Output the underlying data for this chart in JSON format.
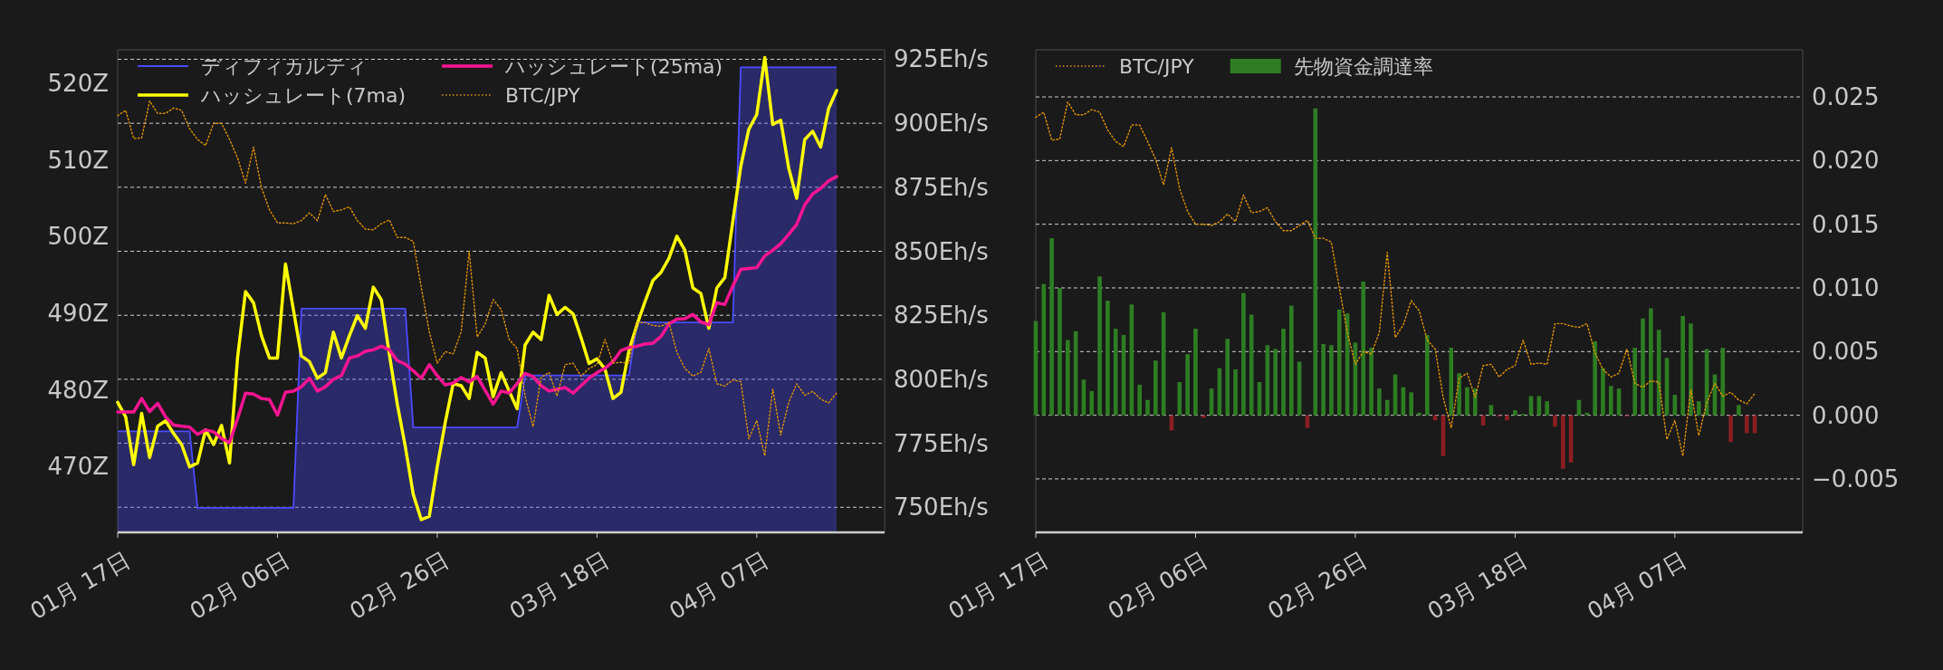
{
  "chart_data": [
    {
      "type": "line",
      "x": [
        "--01-17",
        "--01-18",
        "--01-19",
        "--01-20",
        "--01-21",
        "--01-22",
        "--01-23",
        "--01-24",
        "--01-25",
        "--01-26",
        "--01-27",
        "--01-28",
        "--01-29",
        "--01-30",
        "--01-31",
        "--02-01",
        "--02-02",
        "--02-03",
        "--02-04",
        "--02-05",
        "--02-06",
        "--02-07",
        "--02-08",
        "--02-09",
        "--02-10",
        "--02-11",
        "--02-12",
        "--02-13",
        "--02-14",
        "--02-15",
        "--02-16",
        "--02-17",
        "--02-18",
        "--02-19",
        "--02-20",
        "--02-21",
        "--02-22",
        "--02-23",
        "--02-24",
        "--02-25",
        "--02-26",
        "--02-27",
        "--02-28",
        "--03-01",
        "--03-02",
        "--03-03",
        "--03-04",
        "--03-05",
        "--03-06",
        "--03-07",
        "--03-08",
        "--03-09",
        "--03-10",
        "--03-11",
        "--03-12",
        "--03-13",
        "--03-14",
        "--03-15",
        "--03-16",
        "--03-17",
        "--03-18",
        "--03-19",
        "--03-20",
        "--03-21",
        "--03-22",
        "--03-23",
        "--03-24",
        "--03-25",
        "--03-26",
        "--03-27",
        "--03-28",
        "--03-29",
        "--03-30",
        "--03-31",
        "--04-01",
        "--04-02",
        "--04-03",
        "--04-04",
        "--04-05",
        "--04-06",
        "--04-07",
        "--04-08",
        "--04-09",
        "--04-10",
        "--04-11",
        "--04-12",
        "--04-13",
        "--04-14",
        "--04-15",
        "--04-16",
        "--04-17"
      ],
      "xlim": [
        "--01-17",
        "--04-23"
      ],
      "xticks": [
        {
          "value": "--01-17",
          "label": "01月 17日"
        },
        {
          "value": "--02-06",
          "label": "02月 06日"
        },
        {
          "value": "--02-26",
          "label": "02月 26日"
        },
        {
          "value": "--03-18",
          "label": "03月 18日"
        },
        {
          "value": "--04-07",
          "label": "04月 07日"
        }
      ],
      "ylim": [
        461.4,
        524.4
      ],
      "yticks": [
        {
          "value": 470,
          "label": "470Z"
        },
        {
          "value": 480,
          "label": "480Z"
        },
        {
          "value": 490,
          "label": "490Z"
        },
        {
          "value": 500,
          "label": "500Z"
        },
        {
          "value": 510,
          "label": "510Z"
        },
        {
          "value": 520,
          "label": "520Z"
        }
      ],
      "y2lim": [
        740.2,
        928.7
      ],
      "y2ticks": [
        {
          "value": 750,
          "label": "750Eh/s"
        },
        {
          "value": 775,
          "label": "775Eh/s"
        },
        {
          "value": 800,
          "label": "800Eh/s"
        },
        {
          "value": 825,
          "label": "825Eh/s"
        },
        {
          "value": 850,
          "label": "850Eh/s"
        },
        {
          "value": 875,
          "label": "875Eh/s"
        },
        {
          "value": 900,
          "label": "900Eh/s"
        },
        {
          "value": 925,
          "label": "925Eh/s"
        }
      ],
      "grid": true,
      "legend": "top left",
      "series": [
        {
          "name": "ディフィカルティ",
          "type": "area",
          "color": "#4b4bff",
          "values": [
            474.6,
            474.6,
            474.6,
            474.6,
            474.6,
            474.6,
            474.6,
            474.6,
            474.6,
            474.6,
            464.6,
            464.6,
            464.6,
            464.6,
            464.6,
            464.6,
            464.6,
            464.6,
            464.6,
            464.6,
            464.6,
            464.6,
            464.6,
            490.6,
            490.6,
            490.6,
            490.6,
            490.6,
            490.6,
            490.6,
            490.6,
            490.6,
            490.6,
            490.6,
            490.6,
            490.6,
            490.6,
            475.1,
            475.1,
            475.1,
            475.1,
            475.1,
            475.1,
            475.1,
            475.1,
            475.1,
            475.1,
            475.1,
            475.1,
            475.1,
            475.1,
            481.9,
            481.9,
            481.9,
            481.9,
            481.9,
            481.9,
            481.9,
            481.9,
            481.9,
            481.9,
            481.9,
            481.9,
            481.9,
            481.9,
            488.8,
            488.8,
            488.8,
            488.8,
            488.8,
            488.8,
            488.8,
            488.8,
            488.8,
            488.8,
            488.8,
            488.8,
            488.8,
            522.1,
            522.1,
            522.1,
            522.1,
            522.1,
            522.1,
            522.1,
            522.1,
            522.1,
            522.1,
            522.1,
            522.1,
            522.1
          ]
        },
        {
          "name": "ハッシュレート(7ma)",
          "axis": "y2",
          "color": "#ffff00",
          "values": [
            791.0,
            785.3,
            766.6,
            786.7,
            769.4,
            781.7,
            783.8,
            778.8,
            774.5,
            765.8,
            767.3,
            780.2,
            774.5,
            782.0,
            767.3,
            808.3,
            834.3,
            829.9,
            817.0,
            808.3,
            808.3,
            845.1,
            827.1,
            809.1,
            806.9,
            800.4,
            802.6,
            818.4,
            808.3,
            817.0,
            824.9,
            819.9,
            836.0,
            831.1,
            809.8,
            790.3,
            773.8,
            755.0,
            745.2,
            746.4,
            765.8,
            783.1,
            798.3,
            797.5,
            792.5,
            810.5,
            808.3,
            793.2,
            802.6,
            795.4,
            788.5,
            813.4,
            818.4,
            815.5,
            832.8,
            825.3,
            828.1,
            825.6,
            816.3,
            806.2,
            808.0,
            804.0,
            792.5,
            794.9,
            811.2,
            821.3,
            830.2,
            838.6,
            841.7,
            847.2,
            855.9,
            850.4,
            835.7,
            833.5,
            819.9,
            835.7,
            839.7,
            861.6,
            883.2,
            897.6,
            903.4,
            925.7,
            899.5,
            901.2,
            882.5,
            870.7,
            893.6,
            896.9,
            890.7,
            905.8,
            912.8
          ]
        },
        {
          "name": "ハッシュレート(25ma)",
          "axis": "y2",
          "color": "#ff1493",
          "values": [
            787.2,
            787.2,
            787.2,
            792.5,
            787.4,
            790.6,
            785.3,
            782.1,
            781.7,
            781.3,
            778.5,
            780.2,
            779.5,
            776.9,
            775.2,
            784.6,
            794.6,
            794.2,
            792.5,
            792.1,
            786.0,
            794.9,
            795.4,
            797.1,
            800.4,
            795.4,
            797.1,
            800.0,
            801.4,
            808.3,
            809.1,
            810.9,
            811.5,
            812.9,
            811.5,
            807.3,
            805.9,
            803.3,
            800.4,
            805.7,
            801.4,
            797.8,
            798.5,
            800.7,
            799.0,
            801.1,
            795.7,
            790.3,
            795.4,
            794.6,
            798.3,
            802.3,
            801.1,
            797.5,
            795.4,
            796.1,
            796.8,
            794.6,
            797.5,
            800.4,
            802.6,
            804.3,
            806.9,
            811.2,
            812.4,
            812.9,
            813.8,
            814.1,
            816.7,
            821.6,
            823.5,
            823.7,
            825.3,
            822.4,
            821.3,
            829.9,
            829.2,
            836.4,
            842.9,
            843.3,
            843.6,
            848.2,
            850.4,
            853.0,
            856.6,
            860.5,
            868.1,
            872.4,
            874.6,
            877.5,
            879.2
          ]
        },
        {
          "name": "BTC/JPY",
          "type": "line",
          "line_style": "dotted",
          "color": "#e69500",
          "values": [
            515.8,
            516.5,
            512.8,
            512.9,
            517.7,
            516.1,
            516.1,
            516.8,
            516.5,
            514.1,
            512.7,
            511.9,
            514.8,
            514.8,
            512.7,
            510.3,
            507.0,
            511.7,
            506.4,
            503.5,
            501.8,
            501.8,
            501.7,
            502.1,
            503.1,
            502.1,
            505.5,
            503.3,
            503.5,
            503.9,
            502.1,
            501.0,
            500.9,
            501.7,
            502.2,
            499.9,
            499.9,
            499.4,
            493.4,
            487.6,
            483.5,
            485.0,
            484.7,
            487.6,
            498.1,
            486.9,
            488.6,
            491.8,
            490.5,
            486.6,
            485.4,
            479.2,
            475.2,
            481.6,
            482.3,
            479.2,
            483.3,
            483.5,
            481.8,
            482.8,
            483.3,
            486.6,
            483.5,
            483.6,
            483.5,
            488.8,
            488.8,
            488.4,
            488.3,
            488.8,
            484.9,
            482.8,
            481.8,
            482.3,
            485.4,
            480.8,
            480.5,
            481.3,
            481.1,
            473.6,
            476.0,
            471.4,
            480.1,
            474.1,
            478.4,
            480.8,
            479.3,
            479.8,
            478.8,
            478.3,
            479.6
          ]
        }
      ]
    },
    {
      "type": "bar",
      "x": [
        "--01-17",
        "--01-18",
        "--01-19",
        "--01-20",
        "--01-21",
        "--01-22",
        "--01-23",
        "--01-24",
        "--01-25",
        "--01-26",
        "--01-27",
        "--01-28",
        "--01-29",
        "--01-30",
        "--01-31",
        "--02-01",
        "--02-02",
        "--02-03",
        "--02-04",
        "--02-05",
        "--02-06",
        "--02-07",
        "--02-08",
        "--02-09",
        "--02-10",
        "--02-11",
        "--02-12",
        "--02-13",
        "--02-14",
        "--02-15",
        "--02-16",
        "--02-17",
        "--02-18",
        "--02-19",
        "--02-20",
        "--02-21",
        "--02-22",
        "--02-23",
        "--02-24",
        "--02-25",
        "--02-26",
        "--02-27",
        "--02-28",
        "--03-01",
        "--03-02",
        "--03-03",
        "--03-04",
        "--03-05",
        "--03-06",
        "--03-07",
        "--03-08",
        "--03-09",
        "--03-10",
        "--03-11",
        "--03-12",
        "--03-13",
        "--03-14",
        "--03-15",
        "--03-16",
        "--03-17",
        "--03-18",
        "--03-19",
        "--03-20",
        "--03-21",
        "--03-22",
        "--03-23",
        "--03-24",
        "--03-25",
        "--03-26",
        "--03-27",
        "--03-28",
        "--03-29",
        "--03-30",
        "--03-31",
        "--04-01",
        "--04-02",
        "--04-03",
        "--04-04",
        "--04-05",
        "--04-06",
        "--04-07",
        "--04-08",
        "--04-09",
        "--04-10",
        "--04-11",
        "--04-12",
        "--04-13",
        "--04-14",
        "--04-15",
        "--04-16",
        "--04-17"
      ],
      "xlim": [
        "--01-17",
        "--04-23"
      ],
      "xticks": [
        {
          "value": "--01-17",
          "label": "01月 17日"
        },
        {
          "value": "--02-06",
          "label": "02月 06日"
        },
        {
          "value": "--02-26",
          "label": "02月 26日"
        },
        {
          "value": "--03-18",
          "label": "03月 18日"
        },
        {
          "value": "--04-07",
          "label": "04月 07日"
        }
      ],
      "ylim": [
        -0.0092,
        0.0287
      ],
      "yticks": [
        {
          "value": -0.005,
          "label": "−0.005"
        },
        {
          "value": 0,
          "label": "0.000"
        },
        {
          "value": 0.005,
          "label": "0.005"
        },
        {
          "value": 0.01,
          "label": "0.010"
        },
        {
          "value": 0.015,
          "label": "0.015"
        },
        {
          "value": 0.02,
          "label": "0.020"
        },
        {
          "value": 0.025,
          "label": "0.025"
        }
      ],
      "grid": true,
      "legend": "top left",
      "series": [
        {
          "name": "BTC/JPY",
          "type": "line",
          "line_style": "dotted",
          "color": "#e69500",
          "values": [
            0.0234,
            0.0238,
            0.0216,
            0.0217,
            0.0246,
            0.0236,
            0.0236,
            0.024,
            0.0238,
            0.0224,
            0.0215,
            0.0211,
            0.0228,
            0.0228,
            0.0215,
            0.0201,
            0.0181,
            0.021,
            0.0178,
            0.016,
            0.015,
            0.015,
            0.0149,
            0.0152,
            0.0158,
            0.0152,
            0.0173,
            0.0159,
            0.016,
            0.0163,
            0.0152,
            0.0145,
            0.0145,
            0.0149,
            0.0153,
            0.0139,
            0.0139,
            0.0136,
            0.01,
            0.0065,
            0.004,
            0.005,
            0.0048,
            0.0065,
            0.0128,
            0.0061,
            0.0071,
            0.009,
            0.0082,
            0.0059,
            0.0052,
            0.0014,
            -0.001,
            0.0029,
            0.0033,
            0.0014,
            0.0039,
            0.004,
            0.003,
            0.0036,
            0.0039,
            0.0059,
            0.004,
            0.0041,
            0.004,
            0.0072,
            0.0072,
            0.007,
            0.0069,
            0.0072,
            0.0049,
            0.0036,
            0.003,
            0.0033,
            0.0052,
            0.0025,
            0.0022,
            0.0027,
            0.0026,
            -0.0019,
            -0.0004,
            -0.0032,
            0.002,
            -0.0016,
            0.001,
            0.0025,
            0.0015,
            0.0018,
            0.0012,
            0.0009,
            0.0017
          ]
        },
        {
          "name": "先物資金調達率",
          "color": "#2e7d23",
          "colors": [
            "#2e7d23",
            "#2e7d23",
            "#2e7d23",
            "#2e7d23",
            "#2e7d23",
            "#2e7d23",
            "#2e7d23",
            "#2e7d23",
            "#2e7d23",
            "#2e7d23",
            "#2e7d23",
            "#2e7d23",
            "#2e7d23",
            "#2e7d23",
            "#2e7d23",
            "#2e7d23",
            "#2e7d23",
            "#8b1e24",
            "#2e7d23",
            "#2e7d23",
            "#2e7d23",
            "#8b1e24",
            "#2e7d23",
            "#2e7d23",
            "#2e7d23",
            "#2e7d23",
            "#2e7d23",
            "#2e7d23",
            "#2e7d23",
            "#2e7d23",
            "#2e7d23",
            "#2e7d23",
            "#2e7d23",
            "#2e7d23",
            "#8b1e24",
            "#2e7d23",
            "#2e7d23",
            "#2e7d23",
            "#2e7d23",
            "#2e7d23",
            "#2e7d23",
            "#2e7d23",
            "#2e7d23",
            "#2e7d23",
            "#2e7d23",
            "#2e7d23",
            "#2e7d23",
            "#2e7d23",
            "#2e7d23",
            "#2e7d23",
            "#8b1e24",
            "#8b1e24",
            "#2e7d23",
            "#2e7d23",
            "#2e7d23",
            "#2e7d23",
            "#8b1e24",
            "#2e7d23",
            "#8b1e24",
            "#8b1e24",
            "#2e7d23",
            "#2e7d23",
            "#2e7d23",
            "#2e7d23",
            "#2e7d23",
            "#8b1e24",
            "#8b1e24",
            "#8b1e24",
            "#2e7d23",
            "#2e7d23",
            "#2e7d23",
            "#2e7d23",
            "#2e7d23",
            "#2e7d23",
            "#8b1e24",
            "#2e7d23",
            "#2e7d23",
            "#2e7d23",
            "#2e7d23",
            "#2e7d23",
            "#2e7d23",
            "#2e7d23",
            "#2e7d23",
            "#2e7d23",
            "#2e7d23",
            "#2e7d23",
            "#2e7d23",
            "#8b1e24",
            "#2e7d23",
            "#8b1e24",
            "#8b1e24"
          ],
          "values": [
            0.0074,
            0.0103,
            0.0139,
            0.01,
            0.0059,
            0.0066,
            0.0028,
            0.0019,
            0.0109,
            0.009,
            0.0068,
            0.0063,
            0.0087,
            0.0024,
            0.0012,
            0.0043,
            0.0081,
            -0.0012,
            0.0026,
            0.0048,
            0.0068,
            -0.0002,
            0.0021,
            0.0037,
            0.006,
            0.0036,
            0.0096,
            0.0079,
            0.0026,
            0.0055,
            0.0052,
            0.0068,
            0.0086,
            0.0042,
            -0.001,
            0.0241,
            0.0056,
            0.0055,
            0.0083,
            0.008,
            0.0057,
            0.0105,
            0.0053,
            0.0021,
            0.0012,
            0.0032,
            0.0022,
            0.0018,
            0.0002,
            0.0063,
            -0.0004,
            -0.0032,
            0.0053,
            0.0033,
            0.0022,
            0.0021,
            -0.0008,
            0.0008,
            -0.0001,
            -0.0004,
            0.0004,
            0.0001,
            0.0015,
            0.0015,
            0.0011,
            -0.0009,
            -0.0042,
            -0.0037,
            0.0012,
            0.0002,
            0.0058,
            0.0037,
            0.0023,
            0.0021,
            -0.0001,
            0.0053,
            0.0076,
            0.0084,
            0.0067,
            0.0045,
            0.0016,
            0.0078,
            0.0072,
            0.0011,
            0.0052,
            0.0032,
            0.0053,
            -0.0021,
            0.0008,
            -0.0014,
            -0.0014
          ]
        }
      ]
    }
  ]
}
